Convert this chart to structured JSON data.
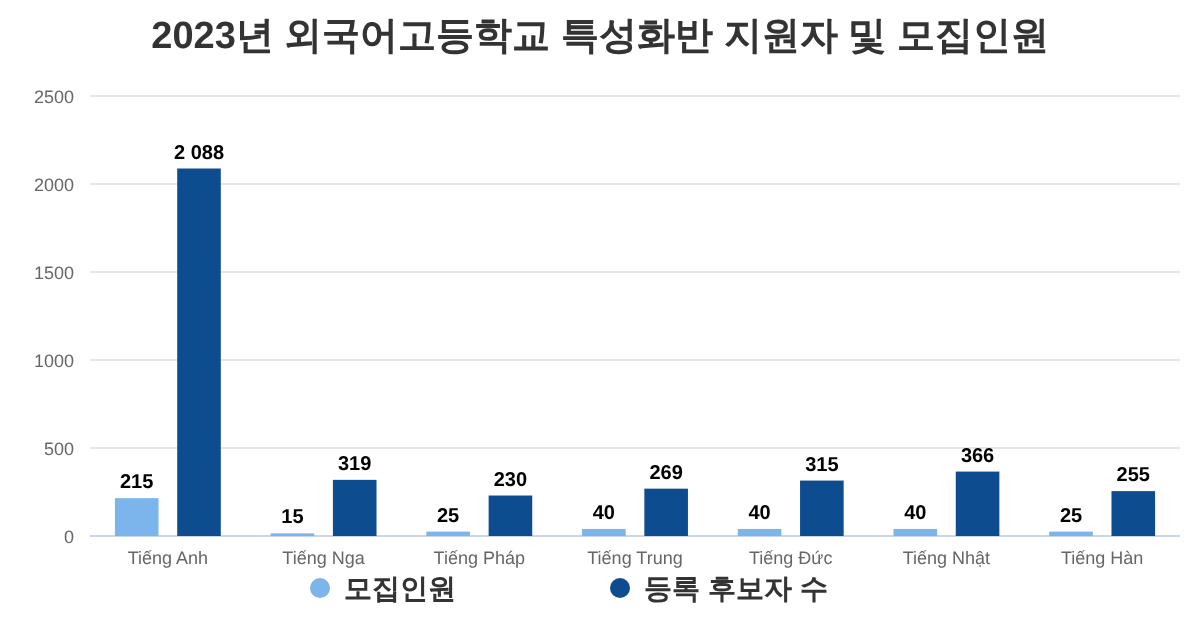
{
  "chart_data": {
    "type": "bar",
    "title": "2023년 외국어고등학교 특성화반 지원자 및 모집인원",
    "categories": [
      "Tiếng Anh",
      "Tiếng Nga",
      "Tiếng Pháp",
      "Tiếng Trung",
      "Tiếng Đức",
      "Tiếng Nhật",
      "Tiếng Hàn"
    ],
    "series": [
      {
        "name": "모집인원",
        "color": "#7cb5ec",
        "values": [
          215,
          15,
          25,
          40,
          40,
          40,
          25
        ],
        "value_labels": [
          "215",
          "15",
          "25",
          "40",
          "40",
          "40",
          "25"
        ]
      },
      {
        "name": "등록 후보자 수",
        "color": "#0d4d8f",
        "values": [
          2088,
          319,
          230,
          269,
          315,
          366,
          255
        ],
        "value_labels": [
          "2 088",
          "319",
          "230",
          "269",
          "315",
          "366",
          "255"
        ]
      }
    ],
    "ylim": [
      0,
      2500
    ],
    "yticks": [
      0,
      500,
      1000,
      1500,
      2000,
      2500
    ],
    "grid": "y",
    "legend": "bottom"
  }
}
